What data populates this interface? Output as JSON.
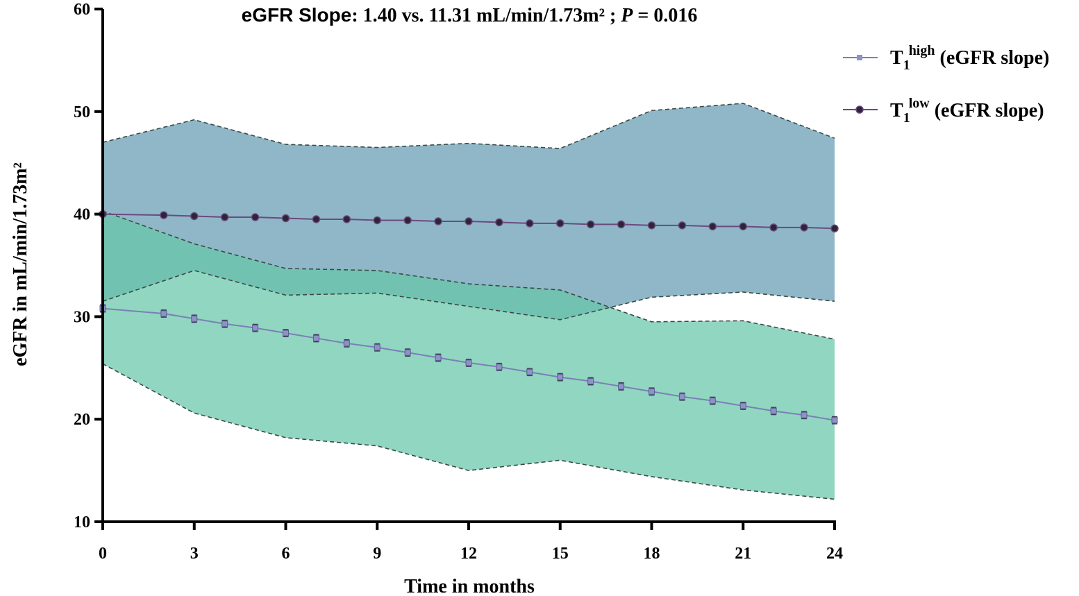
{
  "chart_data": {
    "type": "line",
    "title": {
      "prefix": "eGFR Slope",
      "body": ": 1.40 vs. 11.31 mL/min/1.73m² ; ",
      "p_symbol": "P",
      "p_value": " = 0.016"
    },
    "xlabel": "Time in months",
    "ylabel": "eGFR in mL/min/1.73m²",
    "xlim": [
      0,
      24
    ],
    "ylim": [
      10,
      60
    ],
    "x_ticks": [
      0,
      3,
      6,
      9,
      12,
      15,
      18,
      21,
      24
    ],
    "y_ticks": [
      10,
      20,
      30,
      40,
      50,
      60
    ],
    "colors": {
      "band_low": "#6fa3b8",
      "band_high": "#66c6a8",
      "band_edge": "#3a4a48",
      "line_high": "#7b7fb8",
      "line_low": "#6b4a80",
      "marker_low": "#2e2438",
      "marker_high": "#8e92c4",
      "axis": "#000000"
    },
    "bands": [
      {
        "name": "T1 low band",
        "x": [
          0,
          3,
          6,
          9,
          12,
          15,
          18,
          21,
          24
        ],
        "upper": [
          47.0,
          49.2,
          46.8,
          46.5,
          46.9,
          46.4,
          50.1,
          50.8,
          47.4
        ],
        "lower": [
          31.5,
          34.5,
          32.1,
          32.3,
          31.0,
          29.7,
          31.9,
          32.4,
          31.5
        ]
      },
      {
        "name": "T1 high band",
        "x": [
          0,
          3,
          6,
          9,
          12,
          15,
          18,
          21,
          24
        ],
        "upper": [
          40.3,
          37.1,
          34.7,
          34.5,
          33.2,
          32.6,
          29.5,
          29.6,
          27.8
        ],
        "lower": [
          25.4,
          20.6,
          18.2,
          17.4,
          15.0,
          16.0,
          14.4,
          13.1,
          12.2
        ]
      }
    ],
    "series": [
      {
        "name": "T1 high (eGFR slope)",
        "legend": {
          "main": "T",
          "sub": "1",
          "sup": "high",
          "rest": " (eGFR slope)"
        },
        "marker": "square",
        "x": [
          0,
          2,
          3,
          4,
          5,
          6,
          7,
          8,
          9,
          10,
          11,
          12,
          13,
          14,
          15,
          16,
          17,
          18,
          19,
          20,
          21,
          22,
          23,
          24
        ],
        "values": [
          30.8,
          30.3,
          29.8,
          29.3,
          28.9,
          28.4,
          27.9,
          27.4,
          27.0,
          26.5,
          26.0,
          25.5,
          25.1,
          24.6,
          24.1,
          23.7,
          23.2,
          22.7,
          22.2,
          21.8,
          21.3,
          20.8,
          20.4,
          19.9
        ],
        "error": 0.35
      },
      {
        "name": "T1 low (eGFR slope)",
        "legend": {
          "main": "T",
          "sub": "1",
          "sup": "low",
          "rest": " (eGFR slope)"
        },
        "marker": "circle",
        "x": [
          0,
          2,
          3,
          4,
          5,
          6,
          7,
          8,
          9,
          10,
          11,
          12,
          13,
          14,
          15,
          16,
          17,
          18,
          19,
          20,
          21,
          22,
          23,
          24
        ],
        "values": [
          40.0,
          39.9,
          39.8,
          39.7,
          39.7,
          39.6,
          39.5,
          39.5,
          39.4,
          39.4,
          39.3,
          39.3,
          39.2,
          39.1,
          39.1,
          39.0,
          39.0,
          38.9,
          38.9,
          38.8,
          38.8,
          38.7,
          38.7,
          38.6
        ]
      }
    ]
  }
}
